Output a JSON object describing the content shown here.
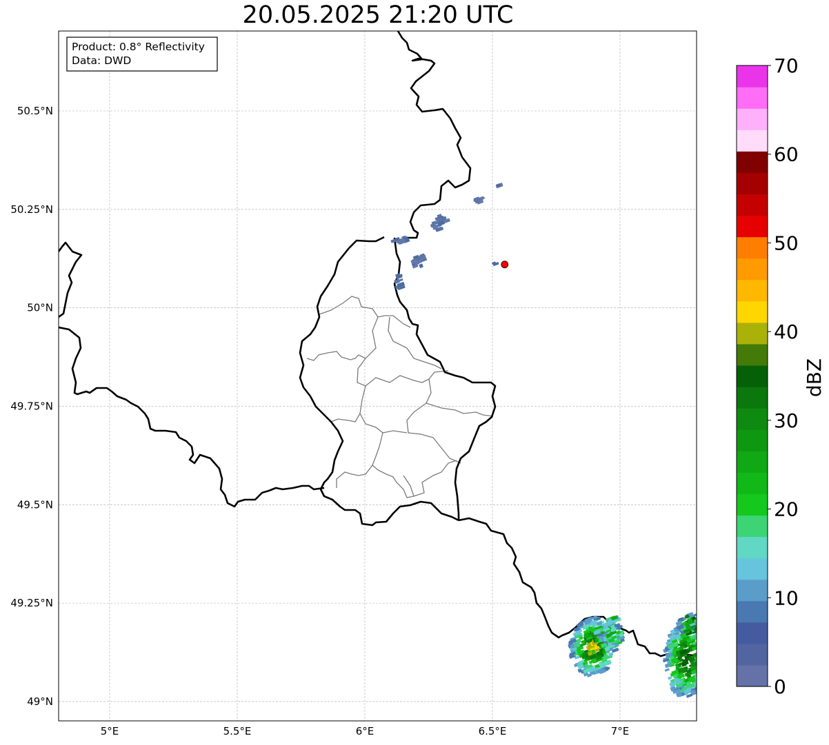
{
  "title": "20.05.2025 21:20 UTC",
  "info_box": {
    "product": "Product: 0.8° Reflectivity",
    "data": "Data: DWD"
  },
  "lat_ticks": [
    {
      "value": 50.5,
      "label": "50.5°N"
    },
    {
      "value": 50.25,
      "label": "50.25°N"
    },
    {
      "value": 50.0,
      "label": "50°N"
    },
    {
      "value": 49.75,
      "label": "49.75°N"
    },
    {
      "value": 49.5,
      "label": "49.5°N"
    },
    {
      "value": 49.25,
      "label": "49.25°N"
    },
    {
      "value": 49.0,
      "label": "49°N"
    }
  ],
  "lon_ticks": [
    {
      "value": 5.0,
      "label": "5°E"
    },
    {
      "value": 5.5,
      "label": "5.5°E"
    },
    {
      "value": 6.0,
      "label": "6°E"
    },
    {
      "value": 6.5,
      "label": "6.5°E"
    },
    {
      "value": 7.0,
      "label": "7°E"
    }
  ],
  "extent": {
    "lon_min": 4.8,
    "lon_max": 7.3,
    "lat_min": 48.95,
    "lat_max": 50.7
  },
  "radar_site": {
    "lon": 6.548,
    "lat": 50.11,
    "color": "#ff0000"
  },
  "colorbar": {
    "label": "dBZ",
    "min": 0,
    "max": 70,
    "ticks": [
      "0",
      "10",
      "20",
      "30",
      "40",
      "50",
      "60",
      "70"
    ],
    "colors": [
      "#6472a8",
      "#5265a0",
      "#445c9f",
      "#4a78b0",
      "#5a9dc8",
      "#66c4dc",
      "#60d8c4",
      "#3cd474",
      "#14c81c",
      "#10b818",
      "#10a814",
      "#0e9812",
      "#0e8a10",
      "#0a780c",
      "#066008",
      "#447a08",
      "#aab208",
      "#ffd600",
      "#ffb800",
      "#ff9a00",
      "#ff7e00",
      "#e60000",
      "#c40000",
      "#a40000",
      "#800000",
      "#ffdcfa",
      "#ffb0fa",
      "#ff6cf6",
      "#ea34ea"
    ]
  }
}
